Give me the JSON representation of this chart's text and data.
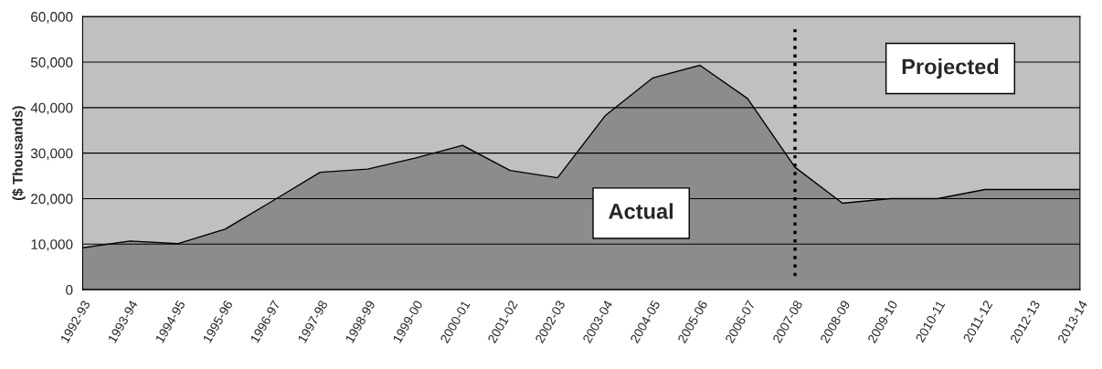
{
  "chart_data": {
    "type": "area",
    "ylabel": "($ Thousands)",
    "categories": [
      "1992-93",
      "1993-94",
      "1994-95",
      "1995-96",
      "1996-97",
      "1997-98",
      "1998-99",
      "1999-00",
      "2000-01",
      "2001-02",
      "2002-03",
      "2003-04",
      "2004-05",
      "2005-06",
      "2006-07",
      "2007-08",
      "2008-09",
      "2009-10",
      "2010-11",
      "2011-12",
      "2012-13",
      "2013-14"
    ],
    "series": [
      {
        "color": "#8c8c8c",
        "values": [
          9200,
          10700,
          10100,
          13300,
          19500,
          25800,
          26500,
          28900,
          31700,
          26200,
          24600,
          38200,
          46500,
          49300,
          42000,
          26900,
          19000,
          20000,
          20000,
          22000,
          22000,
          22000
        ]
      }
    ],
    "ylim": [
      0,
      60000
    ],
    "yticks": [
      {
        "value": 0,
        "label": "0"
      },
      {
        "value": 10000,
        "label": "10,000"
      },
      {
        "value": 20000,
        "label": "20,000"
      },
      {
        "value": 30000,
        "label": "30,000"
      },
      {
        "value": 40000,
        "label": "40,000"
      },
      {
        "value": 50000,
        "label": "50,000"
      },
      {
        "value": 60000,
        "label": "60,000"
      }
    ],
    "grid": "y",
    "legend": false,
    "ref_lines": [
      {
        "axis": "x",
        "value": "2007-08",
        "color": "#000000",
        "line_style": "dotted"
      }
    ],
    "annotations": [
      "Actual",
      "Projected"
    ]
  }
}
